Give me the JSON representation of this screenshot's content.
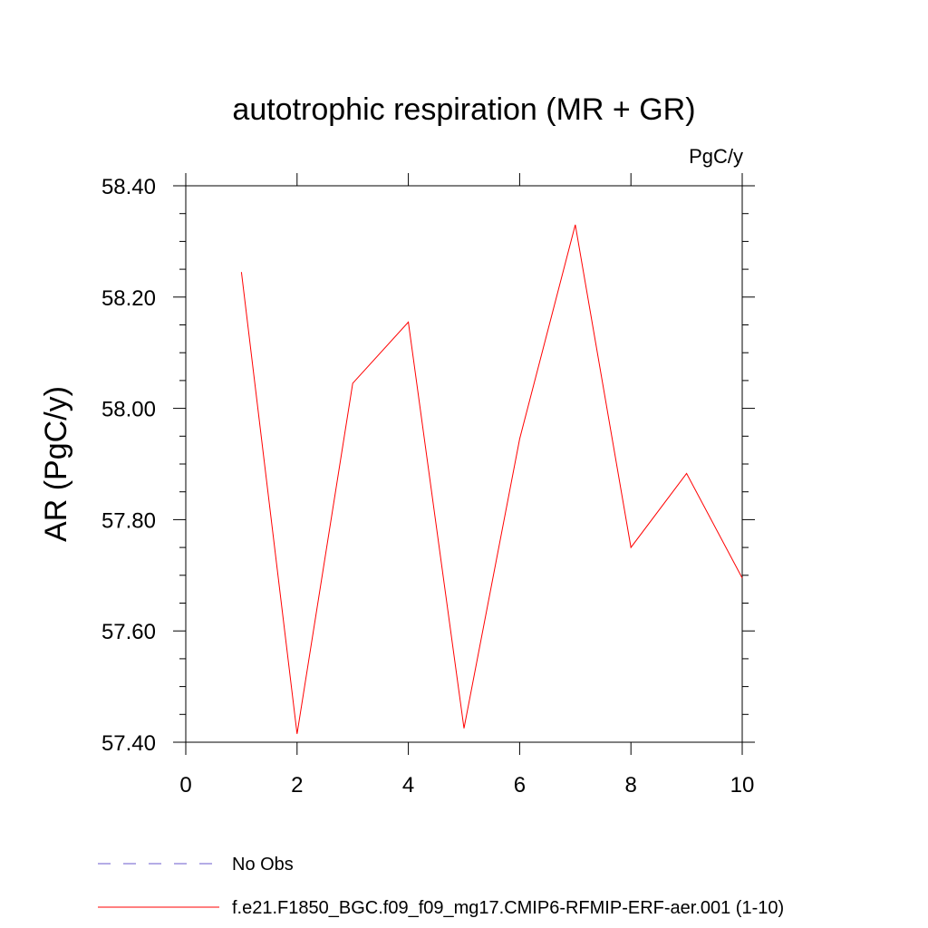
{
  "chart_data": {
    "type": "line",
    "title": "autotrophic respiration (MR + GR)",
    "units": "PgC/y",
    "ylabel": "AR  (PgC/y)",
    "xlabel": "",
    "xlim": [
      0,
      10
    ],
    "ylim": [
      57.4,
      58.4
    ],
    "x_ticks": [
      "0",
      "2",
      "4",
      "6",
      "8",
      "10"
    ],
    "y_ticks": [
      "57.40",
      "57.60",
      "57.80",
      "58.00",
      "58.20",
      "58.40"
    ],
    "grid": false,
    "legend_position": "bottom",
    "series": [
      {
        "name": "f.e21.F1850_BGC.f09_f09_mg17.CMIP6-RFMIP-ERF-aer.001 (1-10)",
        "color": "#ff0000",
        "style": "solid",
        "x": [
          1,
          2,
          3,
          4,
          5,
          6,
          7,
          8,
          9,
          10
        ],
        "values": [
          58.245,
          57.415,
          58.045,
          58.155,
          57.425,
          57.945,
          58.33,
          57.75,
          57.883,
          57.695
        ]
      },
      {
        "name": "No Obs",
        "color": "#6a5acd",
        "style": "dashed",
        "x": [],
        "values": []
      }
    ]
  }
}
